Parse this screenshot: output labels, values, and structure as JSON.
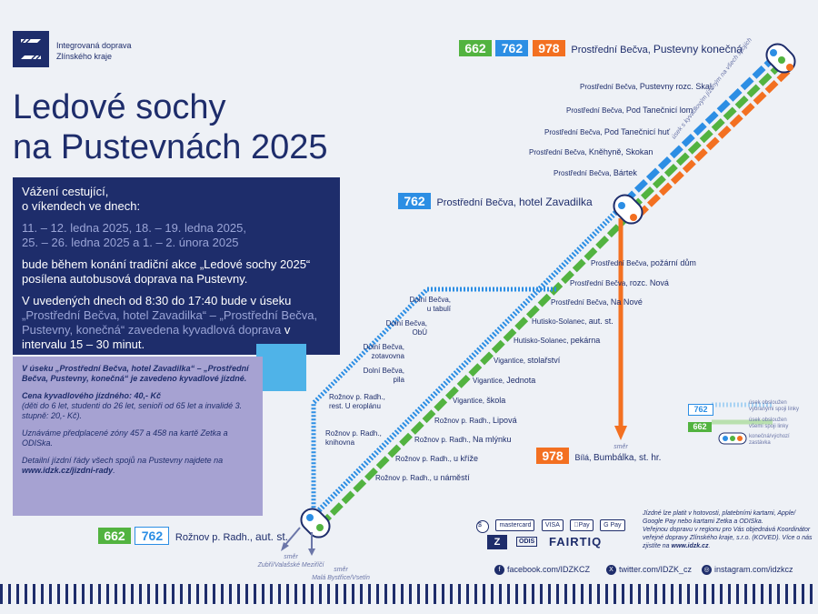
{
  "org": {
    "line1": "Integrovaná doprava",
    "line2": "Zlínského kraje"
  },
  "title": "Ledové sochy\nna Pustevnách 2025",
  "info": {
    "greeting": "Vážení cestující,\no víkendech ve dnech:",
    "dates": "11. – 12. ledna 2025, 18. – 19. ledna 2025,\n25. – 26. ledna 2025 a 1. – 2. února 2025",
    "para1": "bude během konání tradiční akce „Ledové sochy 2025“ posílena autobusová doprava na Pustevny.",
    "para2_a": "V uvedených dnech od 8:30 do 17:40 bude v úseku ",
    "para2_b": "„Prostřední Bečva, hotel Zavadilka“ – „Prostřední Bečva, Pustevny, konečná“ zavedena kyvadlová doprava",
    "para2_c": " v intervalu 15 – 30 minut."
  },
  "purple": {
    "p1": "V úseku „Prostřední Bečva, hotel Zavadilka“ – „Prostřední Bečva, Pustevny, konečná“ je zavedeno kyvadlové jízdné.",
    "p2_title": "Cena kyvadlového jízdného: 40,- Kč",
    "p2_body": "(děti do 6 let, studenti do 26 let, senioři od 65 let a invalidé 3. stupně: 20,- Kč).",
    "p3": "Uznáváme předplacené zóny 457 a 458 na kartě Zetka a ODISka.",
    "p4_a": "Detailní jízdní řády všech spojů na Pustevny najdete na ",
    "p4_b": "www.idzk.cz/jizdni-rady",
    "p4_c": "."
  },
  "badges": {
    "b662": "662",
    "b762": "762",
    "b978": "978"
  },
  "terminals": {
    "pustevny_a": "Prostřední Bečva,",
    "pustevny_b": "Pustevny konečná",
    "zavadilka_a": "Prostřední Bečva,",
    "zavadilka_b": "hotel Zavadilka",
    "roznov_a": "Rožnov p. Radh.,",
    "roznov_b": "aut. st.",
    "bumbalka_a": "Bílá,",
    "bumbalka_b": "Bumbálka, st. hr."
  },
  "upper_stops": [
    {
      "a": "Prostřední Bečva,",
      "b": "Pustevny rozc. Skal."
    },
    {
      "a": "Prostřední Bečva,",
      "b": "Pod Tanečnicí lom"
    },
    {
      "a": "Prostřední Bečva,",
      "b": "Pod Tanečnicí huť"
    },
    {
      "a": "Prostřední Bečva,",
      "b": "Kněhyně, Skokan"
    },
    {
      "a": "Prostřední Bečva,",
      "b": "Bártek"
    }
  ],
  "shuttle_note": "úsek s kyvadlovým jízdným na všech spojích",
  "right_stops": [
    {
      "a": "Prostřední Bečva,",
      "b": "požární dům"
    },
    {
      "a": "Prostřední Bečva,",
      "b": "rozc. Nová"
    },
    {
      "a": "Prostřední Bečva,",
      "b": "Na Nové"
    },
    {
      "a": "Hutisko-Solanec,",
      "b": "aut. st."
    },
    {
      "a": "Hutisko-Solanec,",
      "b": "pekárna"
    },
    {
      "a": "Vigantice,",
      "b": "stolařství"
    },
    {
      "a": "Vigantice,",
      "b": "Jednota"
    },
    {
      "a": "Vigantice,",
      "b": "škola"
    },
    {
      "a": "Rožnov p. Radh.,",
      "b": "Lipová"
    },
    {
      "a": "Rožnov p. Radh.,",
      "b": "Na mlýnku"
    },
    {
      "a": "Rožnov p. Radh.,",
      "b": "u kříže"
    },
    {
      "a": "Rožnov p. Radh.,",
      "b": "u náměstí"
    }
  ],
  "left_stops": [
    {
      "text": "Dolní Bečva,\nu tabulí"
    },
    {
      "text": "Dolní Bečva,\nObÚ"
    },
    {
      "text": "Dolní Bečva,\nzotavovna"
    },
    {
      "text": "Dolní Bečva,\npila"
    },
    {
      "text": "Rožnov p. Radh.,\nrest. U eroplánu"
    },
    {
      "text": "Rožnov p. Radh.,\nknihovna"
    }
  ],
  "directions": {
    "d1_label": "směr",
    "d1": "Zubří/Valašské Meziříčí",
    "d2_label": "směr",
    "d2": "Malá Bystřice/Vsetín",
    "d3_label": "směr"
  },
  "legend": {
    "l1": "úsek obsloužen\nvybranými spoji linky",
    "l2": "úsek obsloužen\nvšemi spoji linky",
    "l3": "konečná/výchozí\nzastávka"
  },
  "payment": {
    "text1": "Jízdné lze platit v hotovosti, platebními kartami, Apple/ Google Pay nebo kartami Zetka a ODISka.",
    "text2": "Veřejnou dopravu v regionu pro Vás objednává Koordinátor veřejné dopravy Zlínského kraje, s.r.o. (KOVED).  Více o nás zjistíte na ",
    "text2_link": "www.idzk.cz",
    "text2_end": ".",
    "cards": [
      "VISA",
      "Pay",
      "G Pay"
    ],
    "mastercard": "mastercard",
    "odis": "ODIS",
    "fairtiq": "FAIRTIQ"
  },
  "social": {
    "facebook": "facebook.com/IDZKCZ",
    "twitter": "twitter.com/IDZK_cz",
    "instagram": "instagram.com/idzkcz"
  },
  "colors": {
    "navy": "#1e2d6b",
    "green": "#52b340",
    "blue": "#2c8ee4",
    "orange": "#f37021",
    "purple": "#a6a2d2",
    "lightblue": "#4fb3e8"
  }
}
